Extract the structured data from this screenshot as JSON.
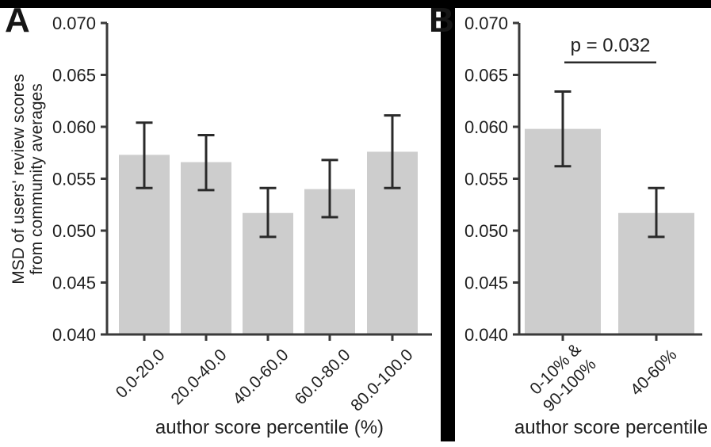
{
  "figure": {
    "panels": [
      {
        "id": "A",
        "label": "A",
        "ylabel_lines": [
          "MSD of users' review scores",
          "from community averages"
        ],
        "xlabel": "author score percentile (%)"
      },
      {
        "id": "B",
        "label": "B",
        "xlabel": "author score percentile",
        "significance_label": "p = 0.032"
      }
    ],
    "colors": {
      "bar_fill": "#cdcdcd",
      "error_bar": "#2a2a2a",
      "axis": "#3a3a3a",
      "text": "#1f1f1f",
      "frame": "#000000"
    }
  },
  "chart_data": [
    {
      "type": "bar",
      "panel": "A",
      "title": "",
      "xlabel": "author score percentile (%)",
      "ylabel": "MSD of users' review scores from community averages",
      "categories": [
        "0.0-20.0",
        "20.0-40.0",
        "40.0-60.0",
        "60.0-80.0",
        "80.0-100.0"
      ],
      "values": [
        0.0573,
        0.0566,
        0.0517,
        0.054,
        0.0576
      ],
      "error_low": [
        0.0541,
        0.0539,
        0.0494,
        0.0513,
        0.0541
      ],
      "error_high": [
        0.0604,
        0.0592,
        0.0541,
        0.0568,
        0.0611
      ],
      "ylim": [
        0.04,
        0.07
      ],
      "ytick_labels": [
        "0.040",
        "0.045",
        "0.050",
        "0.055",
        "0.060",
        "0.065",
        "0.070"
      ],
      "grid": false,
      "legend": null
    },
    {
      "type": "bar",
      "panel": "B",
      "title": "",
      "xlabel": "author score percentile",
      "ylabel": "",
      "categories": [
        [
          "0-10% &",
          "90-100%"
        ],
        [
          "40-60%"
        ]
      ],
      "values": [
        0.0598,
        0.0517
      ],
      "error_low": [
        0.0562,
        0.0494
      ],
      "error_high": [
        0.0634,
        0.0541
      ],
      "ylim": [
        0.04,
        0.07
      ],
      "ytick_labels": [
        "0.040",
        "0.045",
        "0.050",
        "0.055",
        "0.060",
        "0.065",
        "0.070"
      ],
      "annotation": {
        "text": "p = 0.032",
        "line_y": 0.0662,
        "between_bars": [
          0,
          1
        ]
      },
      "grid": false,
      "legend": null
    }
  ]
}
